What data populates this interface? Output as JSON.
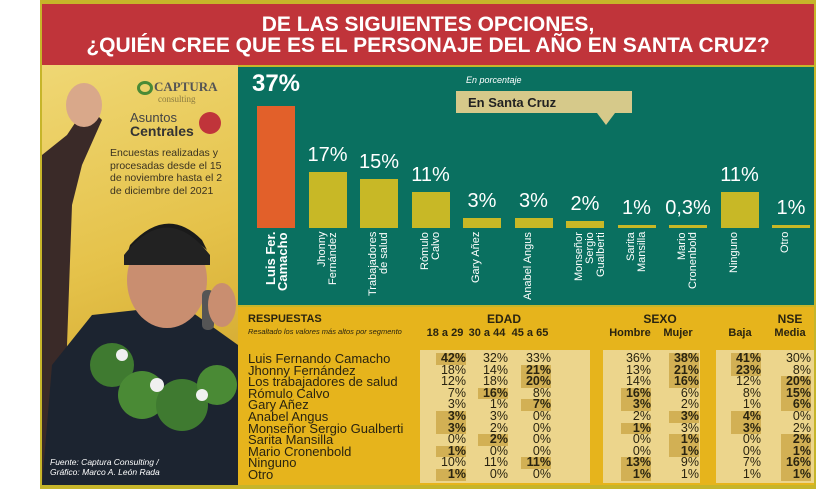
{
  "header": {
    "line1": "DE LAS SIGUIENTES OPCIONES,",
    "line2": "¿QUIÉN CREE QUE ES EL PERSONAJE DEL AÑO EN SANTA CRUZ?"
  },
  "left": {
    "logo1": "CAPTURA",
    "logo1_sub": "consulting",
    "logo2_a": "Asuntos",
    "logo2_b": "Centrales",
    "note": "Encuestas realizadas y procesadas desde el 15 de noviembre hasta el 2 de diciembre del 2021",
    "source1": "Fuente: Captura Consulting /",
    "source2": "Gráfico: Marco A. León Rada"
  },
  "chart_data": {
    "type": "bar",
    "subtitle": "En porcentaje",
    "title": "En Santa Cruz",
    "ylabel": "%",
    "ylim": [
      0,
      40
    ],
    "categories": [
      "Luis Fer. Camacho",
      "Jhonny Fernández",
      "Trabajadores de salud",
      "Rómulo Calvo",
      "Gary Añez",
      "Anabel Angus",
      "Monseñor Sergio Gualberti",
      "Sarita Mansilla",
      "Mario Cronenbold",
      "Ninguno",
      "Otro"
    ],
    "values": [
      37,
      17,
      15,
      11,
      3,
      3,
      2,
      1,
      0.3,
      11,
      1
    ],
    "labels": [
      "37%",
      "17%",
      "15%",
      "11%",
      "3%",
      "3%",
      "2%",
      "1%",
      "0,3%",
      "11%",
      "1%"
    ],
    "colors": {
      "highlight": "#e2602a",
      "default": "#c8b826"
    }
  },
  "table": {
    "title": "RESPUESTAS",
    "subtitle": "Resaltado los valores más altos por segmento",
    "groups": [
      "EDAD",
      "SEXO",
      "NSE"
    ],
    "columns": [
      "18 a 29",
      "30 a 44",
      "45 a 65",
      "Hombre",
      "Mujer",
      "Baja",
      "Media"
    ],
    "rows": [
      {
        "name": "Luis Fernando Camacho",
        "v": [
          "42%",
          "32%",
          "33%",
          "36%",
          "38%",
          "41%",
          "30%"
        ],
        "hi": [
          0,
          4,
          5
        ]
      },
      {
        "name": "Jhonny Fernández",
        "v": [
          "18%",
          "14%",
          "21%",
          "13%",
          "21%",
          "23%",
          "8%"
        ],
        "hi": [
          2,
          4,
          5
        ]
      },
      {
        "name": "Los trabajadores de salud",
        "v": [
          "12%",
          "18%",
          "20%",
          "14%",
          "16%",
          "12%",
          "20%"
        ],
        "hi": [
          2,
          4,
          6
        ]
      },
      {
        "name": "Rómulo Calvo",
        "v": [
          "7%",
          "16%",
          "8%",
          "16%",
          "6%",
          "8%",
          "15%"
        ],
        "hi": [
          1,
          3,
          6
        ]
      },
      {
        "name": "Gary Añez",
        "v": [
          "3%",
          "1%",
          "7%",
          "3%",
          "2%",
          "1%",
          "6%"
        ],
        "hi": [
          2,
          3,
          6
        ]
      },
      {
        "name": "Anabel Angus",
        "v": [
          "3%",
          "3%",
          "0%",
          "2%",
          "3%",
          "4%",
          "0%"
        ],
        "hi": [
          0,
          4,
          5
        ]
      },
      {
        "name": "Monseñor Sergio Gualberti",
        "v": [
          "3%",
          "2%",
          "0%",
          "1%",
          "3%",
          "3%",
          "2%"
        ],
        "hi": [
          0,
          3,
          5
        ]
      },
      {
        "name": "Sarita Mansilla",
        "v": [
          "0%",
          "2%",
          "0%",
          "0%",
          "1%",
          "0%",
          "2%"
        ],
        "hi": [
          1,
          4,
          6
        ]
      },
      {
        "name": "Mario Cronenbold",
        "v": [
          "1%",
          "0%",
          "0%",
          "0%",
          "1%",
          "0%",
          "1%"
        ],
        "hi": [
          0,
          4,
          6
        ]
      },
      {
        "name": "Ninguno",
        "v": [
          "10%",
          "11%",
          "11%",
          "13%",
          "9%",
          "7%",
          "16%"
        ],
        "hi": [
          2,
          3,
          6
        ]
      },
      {
        "name": "Otro",
        "v": [
          "1%",
          "0%",
          "0%",
          "1%",
          "1%",
          "1%",
          "1%"
        ],
        "hi": [
          0,
          3,
          6
        ]
      }
    ]
  }
}
